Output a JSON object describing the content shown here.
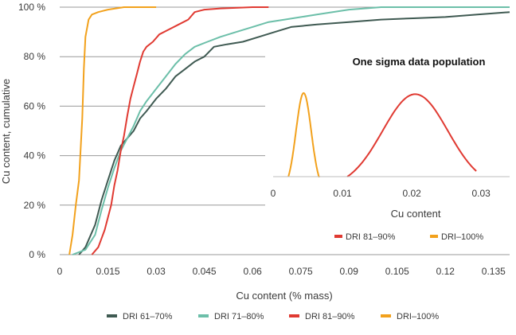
{
  "chart_data": [
    {
      "type": "line",
      "title": "",
      "xlabel": "Cu content (% mass)",
      "ylabel": "Cu content, cumulative",
      "xlim": [
        0,
        0.14
      ],
      "ylim": [
        0,
        100
      ],
      "x_ticks": [
        0,
        0.015,
        0.03,
        0.045,
        0.06,
        0.075,
        0.09,
        0.105,
        0.12,
        0.135
      ],
      "x_tick_labels": [
        "0",
        "0.015",
        "0.03",
        "0.045",
        "0.06",
        "0.075",
        "0.09",
        "0.105",
        "0.12",
        "0.135"
      ],
      "y_ticks": [
        0,
        20,
        40,
        60,
        80,
        100
      ],
      "y_tick_labels": [
        "0 %",
        "20 %",
        "40 %",
        "60 %",
        "80 %",
        "100 %"
      ],
      "grid": "horizontal",
      "legend_position": "bottom",
      "series": [
        {
          "name": "DRI 61–70%",
          "color": "#3f5a52",
          "points": [
            [
              0.006,
              0
            ],
            [
              0.008,
              3
            ],
            [
              0.011,
              12
            ],
            [
              0.013,
              22
            ],
            [
              0.015,
              30
            ],
            [
              0.017,
              38
            ],
            [
              0.019,
              44
            ],
            [
              0.021,
              47
            ],
            [
              0.023,
              50
            ],
            [
              0.025,
              55
            ],
            [
              0.027,
              58
            ],
            [
              0.03,
              63
            ],
            [
              0.033,
              67
            ],
            [
              0.036,
              72
            ],
            [
              0.039,
              75
            ],
            [
              0.042,
              78
            ],
            [
              0.045,
              80
            ],
            [
              0.048,
              84
            ],
            [
              0.052,
              85
            ],
            [
              0.057,
              86
            ],
            [
              0.062,
              88
            ],
            [
              0.067,
              90
            ],
            [
              0.072,
              92
            ],
            [
              0.08,
              93
            ],
            [
              0.09,
              94
            ],
            [
              0.1,
              95
            ],
            [
              0.11,
              95.5
            ],
            [
              0.12,
              96
            ],
            [
              0.13,
              97
            ],
            [
              0.14,
              98
            ]
          ]
        },
        {
          "name": "DRI 71–80%",
          "color": "#6cbfa9",
          "points": [
            [
              0.004,
              0
            ],
            [
              0.008,
              2
            ],
            [
              0.011,
              8
            ],
            [
              0.013,
              18
            ],
            [
              0.015,
              27
            ],
            [
              0.017,
              35
            ],
            [
              0.019,
              42
            ],
            [
              0.021,
              47
            ],
            [
              0.023,
              52
            ],
            [
              0.025,
              58
            ],
            [
              0.027,
              62
            ],
            [
              0.03,
              67
            ],
            [
              0.033,
              72
            ],
            [
              0.036,
              77
            ],
            [
              0.039,
              81
            ],
            [
              0.042,
              84
            ],
            [
              0.046,
              86
            ],
            [
              0.05,
              88
            ],
            [
              0.055,
              90
            ],
            [
              0.06,
              92
            ],
            [
              0.065,
              94
            ],
            [
              0.07,
              95
            ],
            [
              0.08,
              97
            ],
            [
              0.09,
              99
            ],
            [
              0.1,
              100
            ],
            [
              0.14,
              100
            ]
          ]
        },
        {
          "name": "DRI 81–90%",
          "color": "#e03a32",
          "points": [
            [
              0.01,
              0
            ],
            [
              0.012,
              3
            ],
            [
              0.014,
              10
            ],
            [
              0.016,
              20
            ],
            [
              0.017,
              28
            ],
            [
              0.018,
              34
            ],
            [
              0.019,
              42
            ],
            [
              0.02,
              48
            ],
            [
              0.021,
              56
            ],
            [
              0.022,
              63
            ],
            [
              0.023,
              68
            ],
            [
              0.024,
              73
            ],
            [
              0.025,
              78
            ],
            [
              0.026,
              82
            ],
            [
              0.027,
              84
            ],
            [
              0.029,
              86
            ],
            [
              0.031,
              89
            ],
            [
              0.034,
              91
            ],
            [
              0.037,
              93
            ],
            [
              0.04,
              95
            ],
            [
              0.042,
              98
            ],
            [
              0.045,
              99
            ],
            [
              0.05,
              99.5
            ],
            [
              0.06,
              100
            ],
            [
              0.065,
              100
            ]
          ]
        },
        {
          "name": "DRI–100%",
          "color": "#f2a11c",
          "points": [
            [
              0.003,
              0
            ],
            [
              0.004,
              8
            ],
            [
              0.005,
              20
            ],
            [
              0.006,
              30
            ],
            [
              0.007,
              55
            ],
            [
              0.0075,
              75
            ],
            [
              0.008,
              88
            ],
            [
              0.009,
              95
            ],
            [
              0.01,
              97
            ],
            [
              0.012,
              98
            ],
            [
              0.015,
              99
            ],
            [
              0.02,
              100
            ],
            [
              0.03,
              100
            ]
          ]
        }
      ]
    },
    {
      "type": "line",
      "title": "One sigma data population",
      "xlabel": "Cu content",
      "ylabel": "",
      "xlim": [
        0,
        0.034
      ],
      "x_ticks": [
        0,
        0.01,
        0.02,
        0.03
      ],
      "x_tick_labels": [
        "0",
        "0.01",
        "0.02",
        "0.03"
      ],
      "legend_position": "bottom",
      "series": [
        {
          "name": "DRI 81–90%",
          "color": "#e03a32",
          "mean": 0.0205,
          "sigma": 0.0047,
          "range": [
            0.0107,
            0.0293
          ],
          "peak": 0.72
        },
        {
          "name": "DRI–100%",
          "color": "#f2a11c",
          "mean": 0.0044,
          "sigma": 0.0011,
          "range": [
            0.0022,
            0.0067
          ],
          "peak": 0.73
        }
      ]
    }
  ]
}
